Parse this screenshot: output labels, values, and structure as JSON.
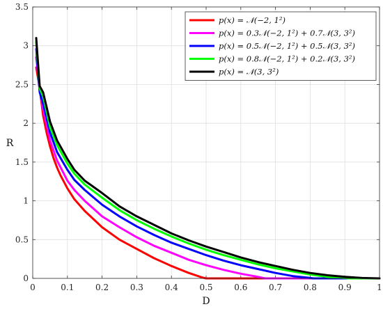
{
  "chart_data": {
    "type": "line",
    "xlabel": "D",
    "ylabel": "R",
    "xlim": [
      0,
      1
    ],
    "ylim": [
      0,
      3.5
    ],
    "xticks": [
      "0",
      "0.1",
      "0.2",
      "0.3",
      "0.4",
      "0.5",
      "0.6",
      "0.7",
      "0.8",
      "0.9",
      "1"
    ],
    "yticks": [
      "0",
      "0.5",
      "1",
      "1.5",
      "2",
      "2.5",
      "3",
      "3.5"
    ],
    "grid": true,
    "legend_position": "top-right",
    "series": [
      {
        "name": "p(x) = 𝒩(−2, 1²)",
        "color": "#ff0000",
        "x": [
          0.01,
          0.02,
          0.03,
          0.04,
          0.05,
          0.06,
          0.07,
          0.08,
          0.1,
          0.12,
          0.15,
          0.2,
          0.25,
          0.3,
          0.35,
          0.4,
          0.45,
          0.49,
          0.5,
          0.6,
          0.7,
          0.8,
          0.9,
          1.0
        ],
        "y": [
          2.72,
          2.45,
          2.1,
          1.88,
          1.7,
          1.55,
          1.43,
          1.33,
          1.16,
          1.02,
          0.87,
          0.66,
          0.5,
          0.38,
          0.26,
          0.16,
          0.07,
          0.01,
          0,
          0,
          0,
          0,
          0,
          0
        ]
      },
      {
        "name": "p(x) = 0.3𝒩(−2, 1²) + 0.7𝒩(3, 3²)",
        "color": "#ff00ff",
        "x": [
          0.01,
          0.02,
          0.03,
          0.05,
          0.07,
          0.1,
          0.12,
          0.15,
          0.2,
          0.25,
          0.3,
          0.35,
          0.4,
          0.45,
          0.5,
          0.55,
          0.6,
          0.65,
          0.67,
          0.7,
          0.8,
          0.9,
          1.0
        ],
        "y": [
          2.85,
          2.45,
          2.18,
          1.78,
          1.52,
          1.26,
          1.14,
          1.0,
          0.8,
          0.66,
          0.53,
          0.42,
          0.33,
          0.24,
          0.17,
          0.11,
          0.06,
          0.02,
          0,
          0,
          0,
          0,
          0
        ]
      },
      {
        "name": "p(x) = 0.5𝒩(−2, 1²) + 0.5𝒩(3, 3²)",
        "color": "#0000ff",
        "x": [
          0.01,
          0.02,
          0.03,
          0.05,
          0.07,
          0.1,
          0.12,
          0.15,
          0.2,
          0.25,
          0.3,
          0.35,
          0.4,
          0.45,
          0.5,
          0.55,
          0.6,
          0.65,
          0.7,
          0.75,
          0.8,
          0.81,
          0.9,
          1.0
        ],
        "y": [
          2.96,
          2.4,
          2.25,
          1.88,
          1.63,
          1.4,
          1.27,
          1.14,
          0.95,
          0.8,
          0.67,
          0.56,
          0.46,
          0.38,
          0.3,
          0.23,
          0.17,
          0.12,
          0.07,
          0.03,
          0.005,
          0,
          0,
          0
        ]
      },
      {
        "name": "p(x) = 0.8𝒩(−2, 1²) + 0.2𝒩(3, 3²)",
        "color": "#00ff00",
        "x": [
          0.01,
          0.02,
          0.03,
          0.05,
          0.07,
          0.1,
          0.12,
          0.15,
          0.2,
          0.25,
          0.3,
          0.35,
          0.4,
          0.45,
          0.5,
          0.55,
          0.6,
          0.65,
          0.7,
          0.75,
          0.8,
          0.85,
          0.9,
          0.91,
          1.0
        ],
        "y": [
          3.05,
          2.45,
          2.35,
          1.95,
          1.72,
          1.48,
          1.35,
          1.21,
          1.04,
          0.88,
          0.75,
          0.64,
          0.54,
          0.45,
          0.37,
          0.3,
          0.24,
          0.18,
          0.13,
          0.09,
          0.05,
          0.02,
          0.005,
          0,
          0
        ]
      },
      {
        "name": "p(x) = 𝒩(3, 3²)",
        "color": "#000000",
        "x": [
          0.01,
          0.02,
          0.03,
          0.05,
          0.07,
          0.1,
          0.12,
          0.15,
          0.2,
          0.25,
          0.3,
          0.35,
          0.4,
          0.45,
          0.5,
          0.55,
          0.6,
          0.65,
          0.7,
          0.75,
          0.8,
          0.85,
          0.9,
          0.95,
          1.0
        ],
        "y": [
          3.1,
          2.48,
          2.4,
          2.02,
          1.78,
          1.54,
          1.4,
          1.26,
          1.1,
          0.93,
          0.8,
          0.69,
          0.58,
          0.49,
          0.41,
          0.34,
          0.27,
          0.21,
          0.16,
          0.11,
          0.07,
          0.04,
          0.02,
          0.005,
          0
        ]
      }
    ]
  }
}
